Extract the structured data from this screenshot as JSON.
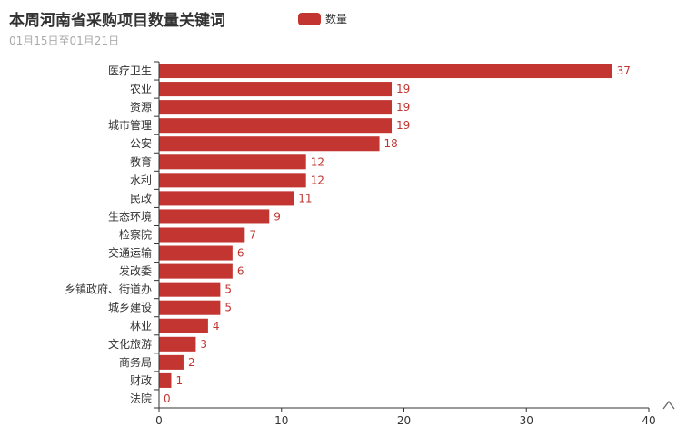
{
  "title": "本周河南省采购项目数量关键词",
  "subtitle": "01月15日至01月21日",
  "colors": {
    "bar": "#c23531",
    "axis": "#333333",
    "text": "#333333",
    "subtitle": "#aaaaaa"
  },
  "toolbox": {
    "icon": "caret-up-icon"
  },
  "chart_data": {
    "type": "bar",
    "orientation": "horizontal",
    "categories": [
      "医疗卫生",
      "农业",
      "资源",
      "城市管理",
      "公安",
      "教育",
      "水利",
      "民政",
      "生态环境",
      "检察院",
      "交通运输",
      "发改委",
      "乡镇政府、街道办",
      "城乡建设",
      "林业",
      "文化旅游",
      "商务局",
      "财政",
      "法院"
    ],
    "series": [
      {
        "name": "数量",
        "values": [
          37,
          19,
          19,
          19,
          18,
          12,
          12,
          11,
          9,
          7,
          6,
          6,
          5,
          5,
          4,
          3,
          2,
          1,
          0
        ]
      }
    ],
    "xlim": [
      0,
      40
    ],
    "xticks": [
      0,
      10,
      20,
      30,
      40
    ],
    "grid": false,
    "legend": "top-center",
    "data_labels": true
  }
}
